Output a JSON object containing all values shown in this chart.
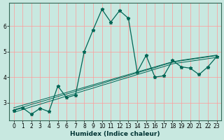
{
  "title": "",
  "xlabel": "Humidex (Indice chaleur)",
  "background_color": "#c8e8e0",
  "grid_color": "#ff9999",
  "line_color": "#006655",
  "x_data": [
    0,
    1,
    2,
    3,
    4,
    5,
    6,
    7,
    8,
    9,
    10,
    11,
    12,
    13,
    14,
    15,
    16,
    17,
    18,
    19,
    20,
    21,
    22,
    23
  ],
  "y_main": [
    2.7,
    2.8,
    2.55,
    2.78,
    2.65,
    3.65,
    3.2,
    3.3,
    5.0,
    5.85,
    6.65,
    6.15,
    6.6,
    6.3,
    4.2,
    4.85,
    4.0,
    4.05,
    4.65,
    4.4,
    4.35,
    4.1,
    4.4,
    4.8
  ],
  "y_reg1": [
    2.72,
    2.82,
    2.93,
    3.03,
    3.13,
    3.24,
    3.34,
    3.44,
    3.55,
    3.65,
    3.75,
    3.86,
    3.96,
    4.06,
    4.17,
    4.27,
    4.37,
    4.48,
    4.58,
    4.64,
    4.69,
    4.74,
    4.79,
    4.84
  ],
  "y_reg2": [
    2.62,
    2.73,
    2.84,
    2.94,
    3.05,
    3.15,
    3.26,
    3.36,
    3.47,
    3.57,
    3.68,
    3.78,
    3.89,
    3.99,
    4.1,
    4.2,
    4.31,
    4.41,
    4.52,
    4.57,
    4.62,
    4.67,
    4.72,
    4.77
  ],
  "y_reg3": [
    2.8,
    2.9,
    3.0,
    3.1,
    3.2,
    3.3,
    3.4,
    3.5,
    3.6,
    3.7,
    3.8,
    3.9,
    4.0,
    4.1,
    4.2,
    4.3,
    4.4,
    4.5,
    4.6,
    4.66,
    4.71,
    4.76,
    4.81,
    4.86
  ],
  "ylim_min": 2.3,
  "ylim_max": 6.9,
  "yticks": [
    3,
    4,
    5,
    6
  ],
  "xticks": [
    0,
    1,
    2,
    3,
    4,
    5,
    6,
    7,
    8,
    9,
    10,
    11,
    12,
    13,
    14,
    15,
    16,
    17,
    18,
    19,
    20,
    21,
    22,
    23
  ],
  "marker": "*",
  "markersize": 3.5,
  "linewidth": 0.9,
  "tick_fontsize": 5.5,
  "label_fontsize": 6.5
}
